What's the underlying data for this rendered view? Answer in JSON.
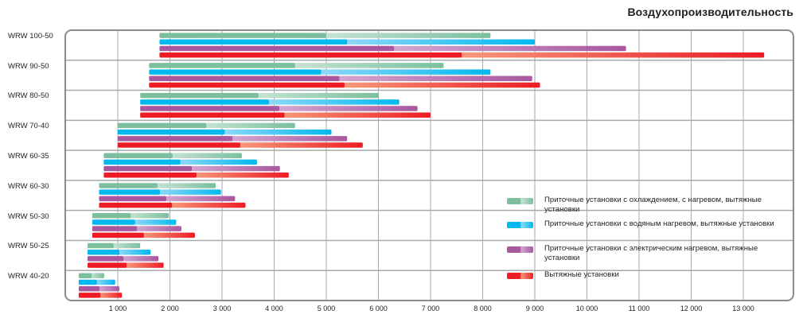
{
  "chart_data": {
    "type": "bar",
    "orientation": "horizontal",
    "style": "floating ranges (min–max), solid segment to mid value then gradient to max",
    "title": "Воздухопроизводительность",
    "xlabel": "",
    "ylabel": "",
    "xlim": [
      0,
      14000
    ],
    "xticks": [
      1000,
      2000,
      3000,
      4000,
      5000,
      6000,
      7000,
      8000,
      9000,
      10000,
      11000,
      12000,
      13000
    ],
    "xtick_labels": [
      "1 000",
      "2 000",
      "3 000",
      "4 000",
      "5 000",
      "6 000",
      "7 000",
      "8 000",
      "9 000",
      "10 000",
      "11 000",
      "12 000",
      "13 000"
    ],
    "grid": true,
    "legend_position": "bottom-right",
    "categories": [
      "WRW 100-50",
      "WRW 90-50",
      "WRW 80-50",
      "WRW 70-40",
      "WRW 60-35",
      "WRW 60-30",
      "WRW 50-30",
      "WRW 50-25",
      "WRW 40-20"
    ],
    "series": [
      {
        "name": "Приточные установки с охлаждением, с нагревом, вытяжные установки",
        "color": "#7bbf9e",
        "color_light": "#c6e3d4",
        "start": [
          1800,
          1600,
          1430,
          1000,
          730,
          640,
          510,
          420,
          250
        ],
        "mid": [
          5000,
          4400,
          3700,
          2700,
          2050,
          1760,
          1250,
          920,
          500
        ],
        "end": [
          8150,
          7250,
          6000,
          4400,
          3380,
          2880,
          1980,
          1430,
          740
        ]
      },
      {
        "name": "Приточные установки с водяным нагревом, вытяжные установки",
        "color": "#00b9ef",
        "color_light": "#8fd8f8",
        "start": [
          1800,
          1600,
          1430,
          1000,
          730,
          640,
          510,
          420,
          250
        ],
        "mid": [
          5400,
          4900,
          3900,
          3050,
          2200,
          1810,
          1330,
          1030,
          600
        ],
        "end": [
          9000,
          8150,
          6400,
          5100,
          3670,
          2980,
          2120,
          1630,
          950
        ]
      },
      {
        "name": "Приточные установки с электрическим нагревом, вытяжные установки",
        "color": "#a9579f",
        "color_light": "#d3a6cf",
        "start": [
          1800,
          1600,
          1430,
          1000,
          730,
          640,
          510,
          420,
          250
        ],
        "mid": [
          6300,
          5250,
          4100,
          3200,
          2420,
          1930,
          1370,
          1110,
          650
        ],
        "end": [
          10750,
          8950,
          6750,
          5400,
          4110,
          3250,
          2220,
          1780,
          1030
        ]
      },
      {
        "name": "Вытяжные установки",
        "color": "#ed1c24",
        "color_light": "#f7987a",
        "start": [
          1800,
          1600,
          1430,
          1000,
          730,
          640,
          510,
          420,
          250
        ],
        "mid": [
          7600,
          5350,
          4200,
          3350,
          2510,
          2040,
          1500,
          1170,
          670
        ],
        "end": [
          13400,
          9100,
          7000,
          5700,
          4280,
          3450,
          2480,
          1880,
          1080
        ]
      }
    ]
  }
}
